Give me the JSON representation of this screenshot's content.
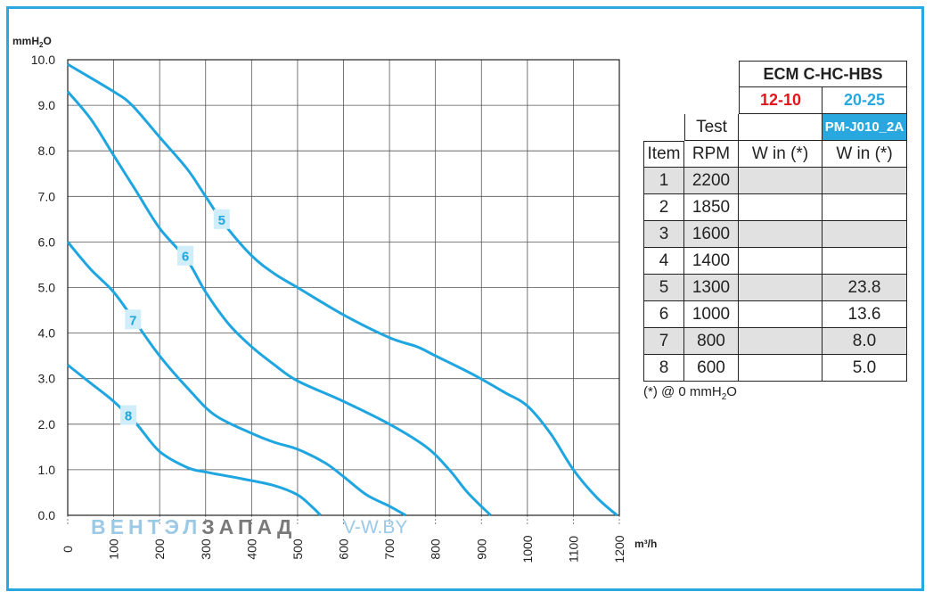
{
  "chart_data": {
    "type": "line",
    "ylabel": "mmH2O",
    "xlabel": "m³/h",
    "xlim": [
      0,
      1200
    ],
    "ylim": [
      0,
      10
    ],
    "xticks": [
      "0",
      "100",
      "200",
      "300",
      "400",
      "500",
      "600",
      "700",
      "800",
      "900",
      "1000",
      "1100",
      "1200"
    ],
    "yticks": [
      "0.0",
      "1.0",
      "2.0",
      "3.0",
      "4.0",
      "5.0",
      "6.0",
      "7.0",
      "8.0",
      "9.0",
      "10.0"
    ],
    "grid": true,
    "series": [
      {
        "name": "5",
        "label_at": [
          335,
          6.5
        ],
        "points": [
          [
            0,
            9.9
          ],
          [
            100,
            9.3
          ],
          [
            140,
            9.0
          ],
          [
            200,
            8.3
          ],
          [
            260,
            7.6
          ],
          [
            300,
            7.0
          ],
          [
            340,
            6.4
          ],
          [
            400,
            5.7
          ],
          [
            450,
            5.3
          ],
          [
            500,
            5.0
          ],
          [
            600,
            4.4
          ],
          [
            700,
            3.9
          ],
          [
            760,
            3.7
          ],
          [
            800,
            3.5
          ],
          [
            880,
            3.1
          ],
          [
            950,
            2.7
          ],
          [
            1000,
            2.4
          ],
          [
            1050,
            1.8
          ],
          [
            1100,
            1.0
          ],
          [
            1150,
            0.4
          ],
          [
            1195,
            0.0
          ]
        ]
      },
      {
        "name": "6",
        "label_at": [
          256,
          5.7
        ],
        "points": [
          [
            0,
            9.3
          ],
          [
            50,
            8.7
          ],
          [
            100,
            7.9
          ],
          [
            150,
            7.1
          ],
          [
            200,
            6.3
          ],
          [
            260,
            5.6
          ],
          [
            300,
            4.9
          ],
          [
            350,
            4.2
          ],
          [
            400,
            3.7
          ],
          [
            450,
            3.3
          ],
          [
            500,
            2.95
          ],
          [
            600,
            2.5
          ],
          [
            700,
            2.0
          ],
          [
            780,
            1.5
          ],
          [
            830,
            1.0
          ],
          [
            870,
            0.5
          ],
          [
            920,
            0.0
          ]
        ]
      },
      {
        "name": "7",
        "label_at": [
          142,
          4.3
        ],
        "points": [
          [
            0,
            6.0
          ],
          [
            50,
            5.4
          ],
          [
            100,
            4.9
          ],
          [
            150,
            4.2
          ],
          [
            200,
            3.5
          ],
          [
            260,
            2.8
          ],
          [
            320,
            2.2
          ],
          [
            400,
            1.8
          ],
          [
            450,
            1.6
          ],
          [
            500,
            1.45
          ],
          [
            560,
            1.15
          ],
          [
            600,
            0.85
          ],
          [
            650,
            0.45
          ],
          [
            700,
            0.2
          ],
          [
            735,
            0.0
          ]
        ]
      },
      {
        "name": "8",
        "label_at": [
          132,
          2.2
        ],
        "points": [
          [
            0,
            3.3
          ],
          [
            50,
            2.9
          ],
          [
            100,
            2.5
          ],
          [
            150,
            2.0
          ],
          [
            200,
            1.4
          ],
          [
            260,
            1.05
          ],
          [
            300,
            0.95
          ],
          [
            380,
            0.8
          ],
          [
            450,
            0.65
          ],
          [
            500,
            0.45
          ],
          [
            530,
            0.2
          ],
          [
            550,
            0.0
          ]
        ]
      }
    ]
  },
  "watermark": {
    "part1": "ВЕНТЭЛ",
    "part2": "ЗАПАД",
    "site": "V-W.BY"
  },
  "table": {
    "model": "ECM C-HC-HBS",
    "variant_a": "12-10",
    "variant_b": "20-25",
    "test_label": "Test",
    "part_number": "PM-J010_2A",
    "headers": [
      "Item",
      "RPM",
      "W in (*)",
      "W in (*)"
    ],
    "rows": [
      {
        "item": "1",
        "rpm": "2200",
        "w1": "",
        "w2": ""
      },
      {
        "item": "2",
        "rpm": "1850",
        "w1": "",
        "w2": ""
      },
      {
        "item": "3",
        "rpm": "1600",
        "w1": "",
        "w2": ""
      },
      {
        "item": "4",
        "rpm": "1400",
        "w1": "",
        "w2": ""
      },
      {
        "item": "5",
        "rpm": "1300",
        "w1": "",
        "w2": "23.8"
      },
      {
        "item": "6",
        "rpm": "1000",
        "w1": "",
        "w2": "13.6"
      },
      {
        "item": "7",
        "rpm": "800",
        "w1": "",
        "w2": "8.0"
      },
      {
        "item": "8",
        "rpm": "600",
        "w1": "",
        "w2": "5.0"
      }
    ],
    "footnote_pre": "(*) @ 0 mmH",
    "footnote_sub": "2",
    "footnote_post": "O"
  },
  "colors": {
    "curve": "#1fa6e0",
    "frame": "#29a8e0",
    "grid": "#555555",
    "red": "#e3141d"
  }
}
